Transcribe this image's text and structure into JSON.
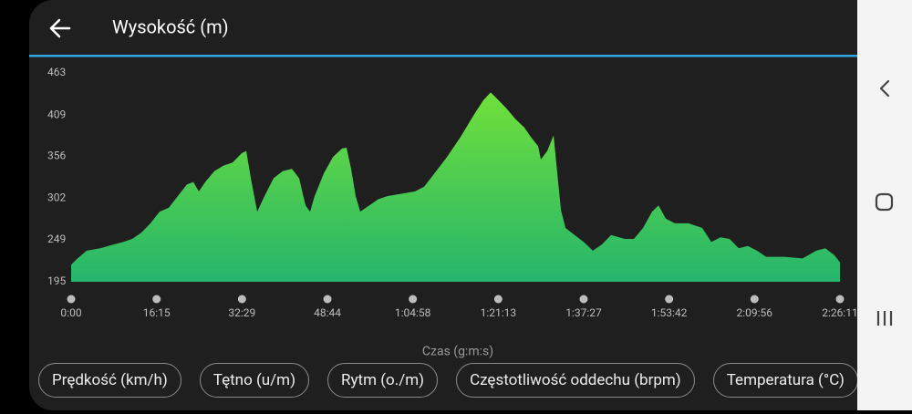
{
  "header": {
    "title": "Wysokość (m)"
  },
  "chart_data": {
    "type": "area",
    "xlabel": "Czas (g:m:s)",
    "x": [
      0,
      73,
      177,
      333,
      489,
      593,
      697,
      801,
      905,
      1009,
      1113,
      1217,
      1321,
      1394,
      1457,
      1530,
      1634,
      1738,
      1842,
      1946,
      1998,
      2050,
      2123,
      2206,
      2310,
      2414,
      2518,
      2601,
      2674,
      2726,
      2778,
      2882,
      2986,
      3090,
      3142,
      3194,
      3246,
      3298,
      3402,
      3506,
      3610,
      3767,
      3923,
      4027,
      4131,
      4287,
      4443,
      4599,
      4703,
      4786,
      4859,
      4963,
      5067,
      5171,
      5244,
      5328,
      5359,
      5432,
      5504,
      5536,
      5588,
      5640,
      5744,
      5848,
      5952,
      6056,
      6160,
      6316,
      6420,
      6524,
      6628,
      6701,
      6784,
      6888,
      7044,
      7200,
      7304,
      7408,
      7512,
      7616,
      7720,
      7825,
      7929,
      8137,
      8345,
      8501,
      8605,
      8709,
      8771
    ],
    "values": [
      217,
      225,
      235,
      238,
      243,
      246,
      250,
      258,
      270,
      285,
      290,
      305,
      320,
      323,
      311,
      323,
      337,
      344,
      348,
      360,
      363,
      328,
      285,
      305,
      328,
      337,
      340,
      328,
      293,
      285,
      305,
      334,
      355,
      366,
      367,
      340,
      305,
      285,
      293,
      301,
      305,
      308,
      311,
      317,
      332,
      355,
      381,
      410,
      428,
      438,
      430,
      418,
      404,
      393,
      381,
      369,
      352,
      363,
      383,
      346,
      287,
      264,
      255,
      246,
      235,
      243,
      255,
      250,
      250,
      264,
      285,
      293,
      276,
      270,
      270,
      264,
      246,
      252,
      250,
      238,
      241,
      235,
      227,
      227,
      225,
      235,
      238,
      229,
      220
    ],
    "colors": [
      "#70e03a",
      "#25b56c"
    ],
    "xlim": [
      0,
      8771
    ],
    "xticks": [
      {
        "value": 0,
        "label": "0:00"
      },
      {
        "value": 975,
        "label": "16:15"
      },
      {
        "value": 1949,
        "label": "32:29"
      },
      {
        "value": 2924,
        "label": "48:44"
      },
      {
        "value": 3898,
        "label": "1:04:58"
      },
      {
        "value": 4873,
        "label": "1:21:13"
      },
      {
        "value": 5847,
        "label": "1:37:27"
      },
      {
        "value": 6822,
        "label": "1:53:42"
      },
      {
        "value": 7796,
        "label": "2:09:56"
      },
      {
        "value": 8771,
        "label": "2:26:11"
      }
    ],
    "ylim": [
      195,
      463
    ],
    "yticks": [
      195,
      249,
      302,
      356,
      409,
      463
    ],
    "grid": false
  },
  "chips": [
    "Prędkość (km/h)",
    "Tętno (u/m)",
    "Rytm (o./m)",
    "Częstotliwość oddechu (brpm)",
    "Temperatura (°C)"
  ]
}
